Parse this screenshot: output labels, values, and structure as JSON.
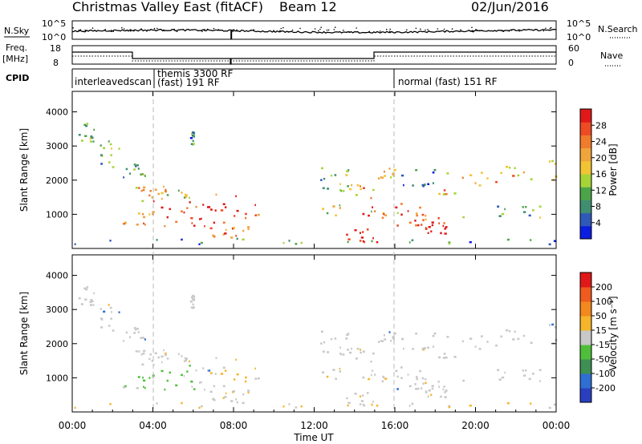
{
  "header": {
    "title": "Christmas Valley East (fitACF)",
    "beam": "Beam 12",
    "date": "02/Jun/2016"
  },
  "strip_labels": {
    "nsky": "N.Sky",
    "nsearch": "N.Search",
    "freq": "Freq.",
    "freq_unit": "[MHz]",
    "nave": "Nave",
    "cpid": "CPID"
  },
  "strip_ticks": {
    "nsky_left": [
      "10^5",
      "10^0"
    ],
    "nsky_right": [
      "10^5",
      "10^0"
    ],
    "freq_left": [
      "18",
      "8"
    ],
    "freq_right": [
      "60",
      "0"
    ]
  },
  "cpid_labels": {
    "a": "interleavedscan",
    "b1": "themis 3300 RF",
    "b2": "(fast) 191 RF",
    "c": "normal (fast) 151 RF"
  },
  "chart_data": [
    {
      "type": "heatmap",
      "name": "power",
      "ylabel": "Slant Range [km]",
      "xlabel": "Time UT",
      "x_ticks": [
        "00:00",
        "04:00",
        "08:00",
        "12:00",
        "16:00",
        "20:00",
        "00:00"
      ],
      "y_ticks": [
        "1000",
        "2000",
        "3000",
        "4000"
      ],
      "colorbar_label": "Power [dB]",
      "colorbar_ticks": [
        "4",
        "8",
        "12",
        "16",
        "20",
        "24",
        "28"
      ],
      "colors": [
        "#0a1de0",
        "#2f59b8",
        "#3f8e72",
        "#4ba548",
        "#a6d437",
        "#f2c433",
        "#f0a43c",
        "#f07b2b",
        "#ee4a24",
        "#e01818"
      ]
    },
    {
      "type": "heatmap",
      "name": "velocity",
      "ylabel": "Slant Range [km]",
      "xlabel": "Time UT",
      "x_ticks": [
        "00:00",
        "04:00",
        "08:00",
        "12:00",
        "16:00",
        "20:00",
        "00:00"
      ],
      "y_ticks": [
        "1000",
        "2000",
        "3000",
        "4000"
      ],
      "colorbar_label": "Velocity [m s⁻¹]",
      "colorbar_ticks": [
        "200",
        "100",
        "50",
        "15",
        "-15",
        "-50",
        "-100",
        "-200"
      ],
      "colors": [
        "#2a3fbf",
        "#2f6ed3",
        "#3e8f53",
        "#4fbf3b",
        "#c8c8c8",
        "#f5b42a",
        "#f2881e",
        "#ef5a1e",
        "#e01818"
      ]
    }
  ],
  "time_axis_label": "Time UT"
}
